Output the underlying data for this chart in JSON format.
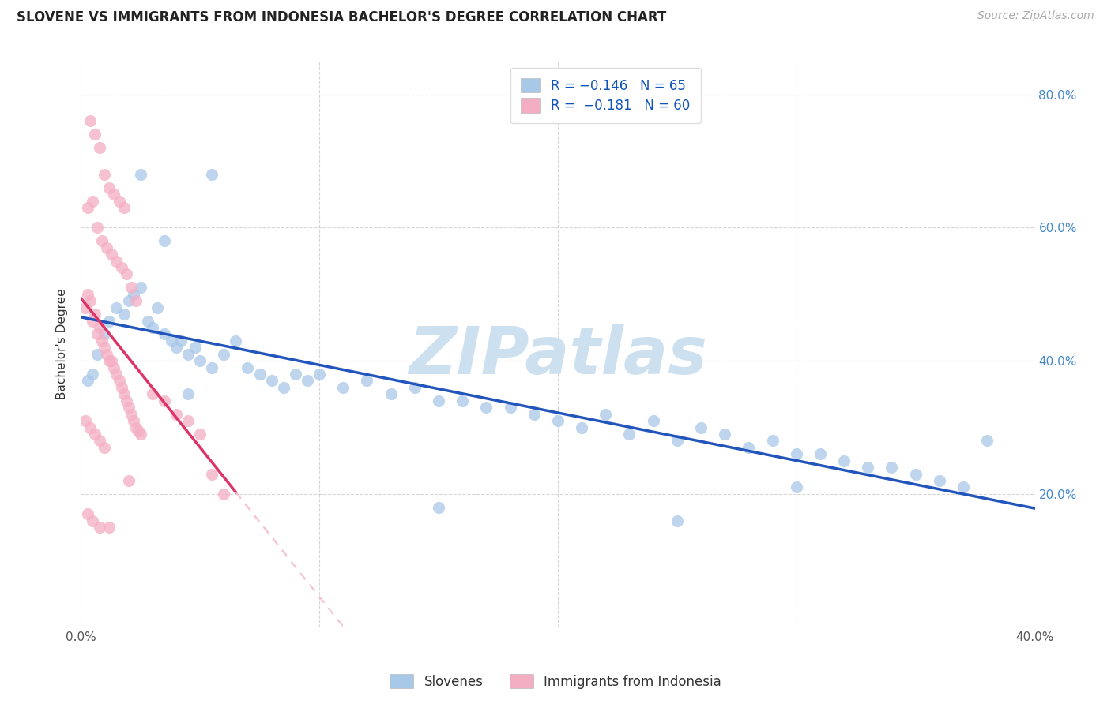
{
  "title": "SLOVENE VS IMMIGRANTS FROM INDONESIA BACHELOR'S DEGREE CORRELATION CHART",
  "source": "Source: ZipAtlas.com",
  "ylabel": "Bachelor's Degree",
  "xlim": [
    0.0,
    0.4
  ],
  "ylim": [
    0.0,
    0.85
  ],
  "xticks": [
    0.0,
    0.1,
    0.2,
    0.3,
    0.4
  ],
  "xtick_labels": [
    "0.0%",
    "",
    "",
    "",
    "40.0%"
  ],
  "yticks": [
    0.0,
    0.2,
    0.4,
    0.6,
    0.8
  ],
  "ytick_labels_left": [
    "",
    "",
    "",
    "",
    ""
  ],
  "ytick_labels_right": [
    "",
    "20.0%",
    "40.0%",
    "60.0%",
    "80.0%"
  ],
  "legend_labels_bottom": [
    "Slovenes",
    "Immigrants from Indonesia"
  ],
  "blue_scatter_color": "#a8c8e8",
  "pink_scatter_color": "#f4aec4",
  "blue_line_color": "#2255bb",
  "pink_line_color": "#dd3366",
  "pink_dashed_color": "#f4aec4",
  "watermark_text": "ZIPatlas",
  "watermark_color": "#cce0f0",
  "blue_scatter_edge": "#88aadd",
  "pink_scatter_edge": "#e888aa",
  "title_fontsize": 12,
  "axis_tick_fontsize": 11,
  "ylabel_fontsize": 11,
  "legend_fontsize": 12,
  "source_fontsize": 10,
  "blue_x": [
    0.003,
    0.005,
    0.007,
    0.01,
    0.012,
    0.015,
    0.018,
    0.02,
    0.022,
    0.025,
    0.028,
    0.03,
    0.032,
    0.035,
    0.038,
    0.04,
    0.042,
    0.045,
    0.048,
    0.05,
    0.055,
    0.06,
    0.065,
    0.07,
    0.075,
    0.08,
    0.085,
    0.09,
    0.095,
    0.1,
    0.11,
    0.12,
    0.13,
    0.14,
    0.15,
    0.16,
    0.17,
    0.18,
    0.19,
    0.2,
    0.21,
    0.22,
    0.23,
    0.24,
    0.25,
    0.26,
    0.27,
    0.28,
    0.29,
    0.3,
    0.31,
    0.32,
    0.33,
    0.34,
    0.35,
    0.36,
    0.37,
    0.025,
    0.035,
    0.045,
    0.055,
    0.15,
    0.25,
    0.3,
    0.38
  ],
  "blue_y": [
    0.37,
    0.38,
    0.41,
    0.44,
    0.46,
    0.48,
    0.47,
    0.49,
    0.5,
    0.51,
    0.46,
    0.45,
    0.48,
    0.44,
    0.43,
    0.42,
    0.43,
    0.41,
    0.42,
    0.4,
    0.39,
    0.41,
    0.43,
    0.39,
    0.38,
    0.37,
    0.36,
    0.38,
    0.37,
    0.38,
    0.36,
    0.37,
    0.35,
    0.36,
    0.34,
    0.34,
    0.33,
    0.33,
    0.32,
    0.31,
    0.3,
    0.32,
    0.29,
    0.31,
    0.28,
    0.3,
    0.29,
    0.27,
    0.28,
    0.26,
    0.26,
    0.25,
    0.24,
    0.24,
    0.23,
    0.22,
    0.21,
    0.68,
    0.58,
    0.35,
    0.68,
    0.18,
    0.16,
    0.21,
    0.28
  ],
  "pink_x": [
    0.002,
    0.003,
    0.004,
    0.005,
    0.006,
    0.007,
    0.008,
    0.009,
    0.01,
    0.011,
    0.012,
    0.013,
    0.014,
    0.015,
    0.016,
    0.017,
    0.018,
    0.019,
    0.02,
    0.021,
    0.022,
    0.023,
    0.024,
    0.025,
    0.003,
    0.005,
    0.007,
    0.009,
    0.011,
    0.013,
    0.015,
    0.017,
    0.019,
    0.021,
    0.023,
    0.004,
    0.006,
    0.008,
    0.01,
    0.012,
    0.014,
    0.016,
    0.018,
    0.002,
    0.004,
    0.006,
    0.008,
    0.01,
    0.003,
    0.005,
    0.03,
    0.035,
    0.04,
    0.045,
    0.05,
    0.055,
    0.06,
    0.008,
    0.012,
    0.02
  ],
  "pink_y": [
    0.48,
    0.5,
    0.49,
    0.46,
    0.47,
    0.44,
    0.45,
    0.43,
    0.42,
    0.41,
    0.4,
    0.4,
    0.39,
    0.38,
    0.37,
    0.36,
    0.35,
    0.34,
    0.33,
    0.32,
    0.31,
    0.3,
    0.295,
    0.29,
    0.63,
    0.64,
    0.6,
    0.58,
    0.57,
    0.56,
    0.55,
    0.54,
    0.53,
    0.51,
    0.49,
    0.76,
    0.74,
    0.72,
    0.68,
    0.66,
    0.65,
    0.64,
    0.63,
    0.31,
    0.3,
    0.29,
    0.28,
    0.27,
    0.17,
    0.16,
    0.35,
    0.34,
    0.32,
    0.31,
    0.29,
    0.23,
    0.2,
    0.15,
    0.15,
    0.22
  ]
}
